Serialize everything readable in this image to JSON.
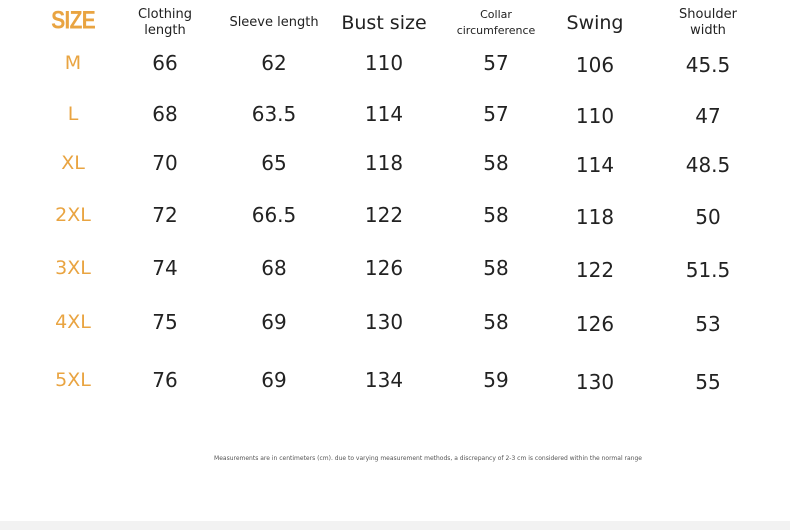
{
  "header": {
    "size": "SIZE",
    "columns": [
      "Clothing\nlength",
      "Sleeve length",
      "Bust size",
      "Collar\ncircumference",
      "Swing",
      "Shoulder\nwidth"
    ]
  },
  "rows": [
    {
      "size": "M",
      "values": [
        "66",
        "62",
        "110",
        "57",
        "106",
        "45.5"
      ]
    },
    {
      "size": "L",
      "values": [
        "68",
        "63.5",
        "114",
        "57",
        "110",
        "47"
      ]
    },
    {
      "size": "XL",
      "values": [
        "70",
        "65",
        "118",
        "58",
        "114",
        "48.5"
      ]
    },
    {
      "size": "2XL",
      "values": [
        "72",
        "66.5",
        "122",
        "58",
        "118",
        "50"
      ]
    },
    {
      "size": "3XL",
      "values": [
        "74",
        "68",
        "126",
        "58",
        "122",
        "51.5"
      ]
    },
    {
      "size": "4XL",
      "values": [
        "75",
        "69",
        "130",
        "58",
        "126",
        "53"
      ]
    },
    {
      "size": "5XL",
      "values": [
        "76",
        "69",
        "134",
        "59",
        "130",
        "55"
      ]
    }
  ],
  "note": "Measurements are in centimeters (cm). due to varying measurement methods, a discrepancy of 2-3 cm is considered within the normal range",
  "colors": {
    "accent": "#e9a441"
  }
}
